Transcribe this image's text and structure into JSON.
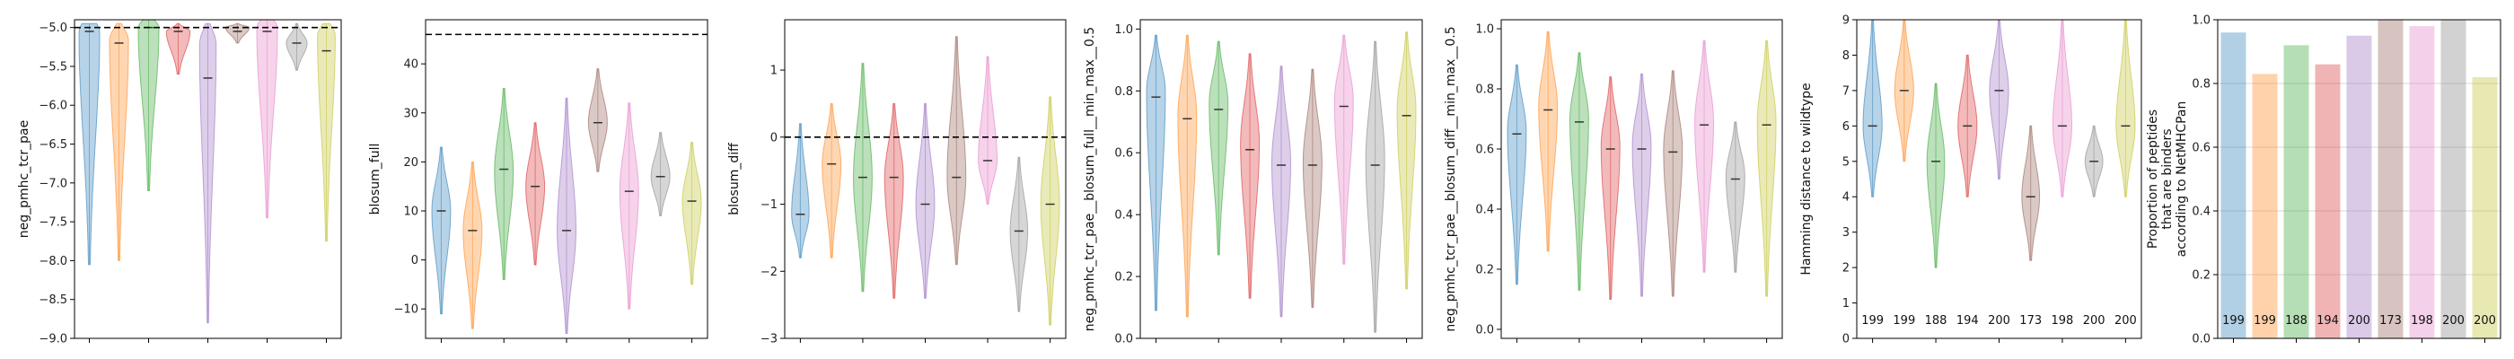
{
  "colors": [
    "#1f77b4",
    "#ff7f0e",
    "#2ca02c",
    "#d62728",
    "#9467bd",
    "#8c564b",
    "#e377c2",
    "#7f7f7f",
    "#bcbd22"
  ],
  "chart_data": [
    {
      "type": "violin",
      "ylabel": "neg_pmhc_tcr_pae",
      "ylim": [
        -9.0,
        -4.9
      ],
      "yticks": [
        -9.0,
        -8.5,
        -8.0,
        -7.5,
        -7.0,
        -6.5,
        -6.0,
        -5.5,
        -5.0
      ],
      "ytick_labels": [
        "−9.0",
        "−8.5",
        "−8.0",
        "−7.5",
        "−7.0",
        "−6.5",
        "−6.0",
        "−5.5",
        "−5.0"
      ],
      "reference_line": -5.0,
      "violins": [
        {
          "min": -8.05,
          "max": -4.95,
          "median": -5.05,
          "mode": -5.05,
          "hw": 0.35
        },
        {
          "min": -8.0,
          "max": -4.95,
          "median": -5.2,
          "mode": -5.15,
          "hw": 0.32
        },
        {
          "min": -7.1,
          "max": -4.9,
          "median": -5.0,
          "mode": -5.0,
          "hw": 0.35
        },
        {
          "min": -5.6,
          "max": -4.95,
          "median": -5.05,
          "mode": -5.05,
          "hw": 0.4
        },
        {
          "min": -8.8,
          "max": -4.95,
          "median": -5.65,
          "mode": -5.2,
          "hw": 0.28
        },
        {
          "min": -5.2,
          "max": -4.95,
          "median": -5.05,
          "mode": -5.0,
          "hw": 0.4
        },
        {
          "min": -7.45,
          "max": -4.9,
          "median": -5.05,
          "mode": -5.0,
          "hw": 0.35
        },
        {
          "min": -5.55,
          "max": -4.95,
          "median": -5.2,
          "mode": -5.2,
          "hw": 0.35
        },
        {
          "min": -7.75,
          "max": -4.95,
          "median": -5.3,
          "mode": -5.1,
          "hw": 0.3
        }
      ]
    },
    {
      "type": "violin",
      "ylabel": "blosum_full",
      "ylim": [
        -16,
        49
      ],
      "yticks": [
        -10,
        0,
        10,
        20,
        30,
        40
      ],
      "ytick_labels": [
        "−10",
        "0",
        "10",
        "20",
        "30",
        "40"
      ],
      "reference_line": 46,
      "violins": [
        {
          "min": -11,
          "max": 23,
          "median": 10,
          "mode": 10,
          "hw": 0.3
        },
        {
          "min": -14,
          "max": 20,
          "median": 6,
          "mode": 6,
          "hw": 0.3
        },
        {
          "min": -4,
          "max": 35,
          "median": 18.5,
          "mode": 18,
          "hw": 0.3
        },
        {
          "min": -1,
          "max": 28,
          "median": 15,
          "mode": 15,
          "hw": 0.3
        },
        {
          "min": -15,
          "max": 33,
          "median": 6,
          "mode": 6,
          "hw": 0.3
        },
        {
          "min": 18,
          "max": 39,
          "median": 28,
          "mode": 28,
          "hw": 0.3
        },
        {
          "min": -10,
          "max": 32,
          "median": 14,
          "mode": 14,
          "hw": 0.3
        },
        {
          "min": 9,
          "max": 26,
          "median": 17,
          "mode": 17,
          "hw": 0.3
        },
        {
          "min": -5,
          "max": 24,
          "median": 12,
          "mode": 12,
          "hw": 0.3
        }
      ]
    },
    {
      "type": "violin",
      "ylabel": "blosum_diff",
      "ylim": [
        -3.0,
        1.75
      ],
      "yticks": [
        -3,
        -2,
        -1,
        0,
        1
      ],
      "ytick_labels": [
        "−3",
        "−2",
        "−1",
        "0",
        "1"
      ],
      "reference_line": 0,
      "violins": [
        {
          "min": -1.8,
          "max": 0.2,
          "median": -1.15,
          "mode": -1.15,
          "hw": 0.28
        },
        {
          "min": -1.8,
          "max": 0.5,
          "median": -0.4,
          "mode": -0.4,
          "hw": 0.3
        },
        {
          "min": -2.3,
          "max": 1.1,
          "median": -0.6,
          "mode": -0.6,
          "hw": 0.3
        },
        {
          "min": -2.4,
          "max": 0.5,
          "median": -0.6,
          "mode": -0.6,
          "hw": 0.3
        },
        {
          "min": -2.4,
          "max": 0.5,
          "median": -1.0,
          "mode": -1.0,
          "hw": 0.3
        },
        {
          "min": -1.9,
          "max": 1.5,
          "median": -0.6,
          "mode": -0.6,
          "hw": 0.3
        },
        {
          "min": -1.0,
          "max": 1.2,
          "median": -0.35,
          "mode": -0.35,
          "hw": 0.3
        },
        {
          "min": -2.6,
          "max": -0.3,
          "median": -1.4,
          "mode": -1.4,
          "hw": 0.28
        },
        {
          "min": -2.8,
          "max": 0.6,
          "median": -1.0,
          "mode": -1.0,
          "hw": 0.3
        }
      ]
    },
    {
      "type": "violin",
      "ylabel": "neg_pmhc_tcr_pae__blosum_full__min_max__0.5",
      "ylim": [
        0.0,
        1.03
      ],
      "yticks": [
        0.0,
        0.2,
        0.4,
        0.6,
        0.8,
        1.0
      ],
      "ytick_labels": [
        "0.0",
        "0.2",
        "0.4",
        "0.6",
        "0.8",
        "1.0"
      ],
      "violins": [
        {
          "min": 0.09,
          "max": 0.98,
          "median": 0.78,
          "mode": 0.8,
          "hw": 0.3
        },
        {
          "min": 0.07,
          "max": 0.98,
          "median": 0.71,
          "mode": 0.72,
          "hw": 0.3
        },
        {
          "min": 0.27,
          "max": 0.96,
          "median": 0.74,
          "mode": 0.76,
          "hw": 0.3
        },
        {
          "min": 0.13,
          "max": 0.92,
          "median": 0.61,
          "mode": 0.63,
          "hw": 0.3
        },
        {
          "min": 0.07,
          "max": 0.88,
          "median": 0.56,
          "mode": 0.57,
          "hw": 0.3
        },
        {
          "min": 0.1,
          "max": 0.87,
          "median": 0.56,
          "mode": 0.57,
          "hw": 0.3
        },
        {
          "min": 0.24,
          "max": 0.98,
          "median": 0.75,
          "mode": 0.77,
          "hw": 0.3
        },
        {
          "min": 0.02,
          "max": 0.96,
          "median": 0.56,
          "mode": 0.58,
          "hw": 0.3
        },
        {
          "min": 0.16,
          "max": 0.99,
          "median": 0.72,
          "mode": 0.74,
          "hw": 0.3
        }
      ]
    },
    {
      "type": "violin",
      "ylabel": "neg_pmhc_tcr_pae__blosum_diff__min_max__0.5",
      "ylim": [
        -0.03,
        1.03
      ],
      "yticks": [
        0.0,
        0.2,
        0.4,
        0.6,
        0.8,
        1.0
      ],
      "ytick_labels": [
        "0.0",
        "0.2",
        "0.4",
        "0.6",
        "0.8",
        "1.0"
      ],
      "violins": [
        {
          "min": 0.15,
          "max": 0.88,
          "median": 0.65,
          "mode": 0.66,
          "hw": 0.3
        },
        {
          "min": 0.26,
          "max": 0.99,
          "median": 0.73,
          "mode": 0.74,
          "hw": 0.3
        },
        {
          "min": 0.13,
          "max": 0.92,
          "median": 0.69,
          "mode": 0.7,
          "hw": 0.3
        },
        {
          "min": 0.1,
          "max": 0.84,
          "median": 0.6,
          "mode": 0.61,
          "hw": 0.3
        },
        {
          "min": 0.11,
          "max": 0.85,
          "median": 0.6,
          "mode": 0.61,
          "hw": 0.3
        },
        {
          "min": 0.11,
          "max": 0.86,
          "median": 0.59,
          "mode": 0.6,
          "hw": 0.3
        },
        {
          "min": 0.19,
          "max": 0.96,
          "median": 0.68,
          "mode": 0.69,
          "hw": 0.3
        },
        {
          "min": 0.19,
          "max": 0.69,
          "median": 0.5,
          "mode": 0.51,
          "hw": 0.3
        },
        {
          "min": 0.11,
          "max": 0.96,
          "median": 0.68,
          "mode": 0.69,
          "hw": 0.3
        }
      ]
    },
    {
      "type": "violin",
      "ylabel": "Hamming distance to wildtype",
      "ylim": [
        0,
        9
      ],
      "yticks": [
        0,
        1,
        2,
        3,
        4,
        5,
        6,
        7,
        8,
        9
      ],
      "ytick_labels": [
        "0",
        "1",
        "2",
        "3",
        "4",
        "5",
        "6",
        "7",
        "8",
        "9"
      ],
      "counts": [
        "199",
        "199",
        "188",
        "194",
        "200",
        "173",
        "198",
        "200",
        "200"
      ],
      "violins": [
        {
          "min": 4,
          "max": 9,
          "median": 6,
          "mode": 6,
          "hw": 0.3
        },
        {
          "min": 5,
          "max": 9,
          "median": 7,
          "mode": 7,
          "hw": 0.3
        },
        {
          "min": 2,
          "max": 7.2,
          "median": 5,
          "mode": 5,
          "hw": 0.28
        },
        {
          "min": 4,
          "max": 8,
          "median": 6,
          "mode": 6,
          "hw": 0.3
        },
        {
          "min": 4.5,
          "max": 9,
          "median": 7,
          "mode": 7,
          "hw": 0.3
        },
        {
          "min": 2.2,
          "max": 6,
          "median": 4,
          "mode": 4,
          "hw": 0.28
        },
        {
          "min": 4,
          "max": 9,
          "median": 6,
          "mode": 6,
          "hw": 0.3
        },
        {
          "min": 4,
          "max": 6,
          "median": 5,
          "mode": 5,
          "hw": 0.28
        },
        {
          "min": 4,
          "max": 9,
          "median": 6,
          "mode": 6,
          "hw": 0.3
        }
      ]
    },
    {
      "type": "bar",
      "ylabel_lines": [
        "Proportion of peptides",
        "that are binders",
        "according to NetMHCPan"
      ],
      "ylim": [
        0.0,
        1.0
      ],
      "yticks": [
        0.0,
        0.2,
        0.4,
        0.6,
        0.8,
        1.0
      ],
      "ytick_labels": [
        "0.0",
        "0.2",
        "0.4",
        "0.6",
        "0.8",
        "1.0"
      ],
      "values": [
        0.96,
        0.83,
        0.92,
        0.86,
        0.95,
        1.0,
        0.98,
        1.0,
        0.82
      ],
      "counts": [
        "199",
        "199",
        "188",
        "194",
        "200",
        "173",
        "198",
        "200",
        "200"
      ]
    }
  ]
}
